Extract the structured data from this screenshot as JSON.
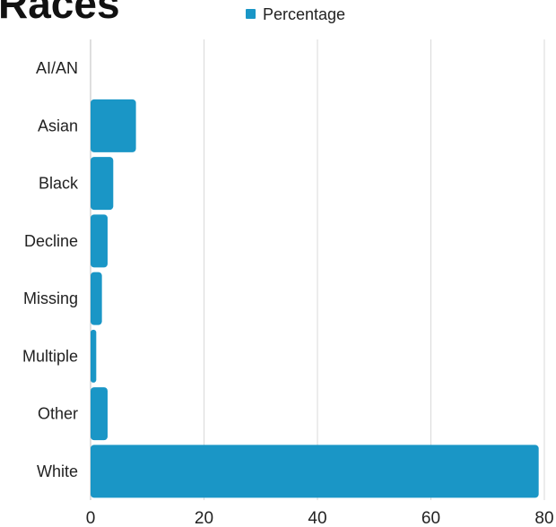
{
  "chart_data": {
    "type": "bar",
    "orientation": "horizontal",
    "title": "Races",
    "categories": [
      "AI/AN",
      "Asian",
      "Black",
      "Decline",
      "Missing",
      "Multiple",
      "Other",
      "White"
    ],
    "series": [
      {
        "name": "Percentage",
        "color": "#1a96c6",
        "values": [
          0,
          8,
          4,
          3,
          2,
          1,
          3,
          79
        ]
      }
    ],
    "xlim": [
      0,
      80
    ],
    "xticks": [
      0,
      20,
      40,
      60,
      80
    ],
    "xlabel": "",
    "ylabel": "",
    "grid": "vertical",
    "legend": "top-center"
  }
}
